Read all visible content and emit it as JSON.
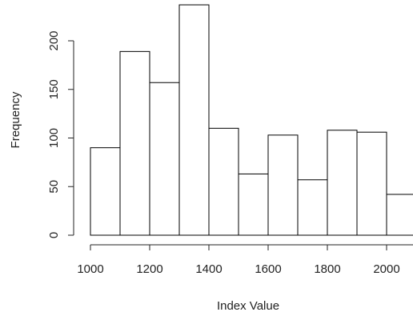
{
  "chart_data": {
    "type": "histogram",
    "xlabel": "Index Value",
    "ylabel": "Frequency",
    "bins": [
      1000,
      1100,
      1200,
      1300,
      1400,
      1500,
      1600,
      1700,
      1800,
      1900,
      2000,
      2100
    ],
    "values": [
      90,
      189,
      157,
      237,
      110,
      63,
      103,
      57,
      108,
      106,
      42
    ],
    "color": "#ffffff",
    "edgecolor": "#000000",
    "xlim": [
      1000,
      2100
    ],
    "ylim": [
      0,
      240
    ],
    "xticks": [
      1000,
      1200,
      1400,
      1600,
      1800,
      2000
    ],
    "yticks": [
      0,
      50,
      100,
      150,
      200
    ]
  }
}
